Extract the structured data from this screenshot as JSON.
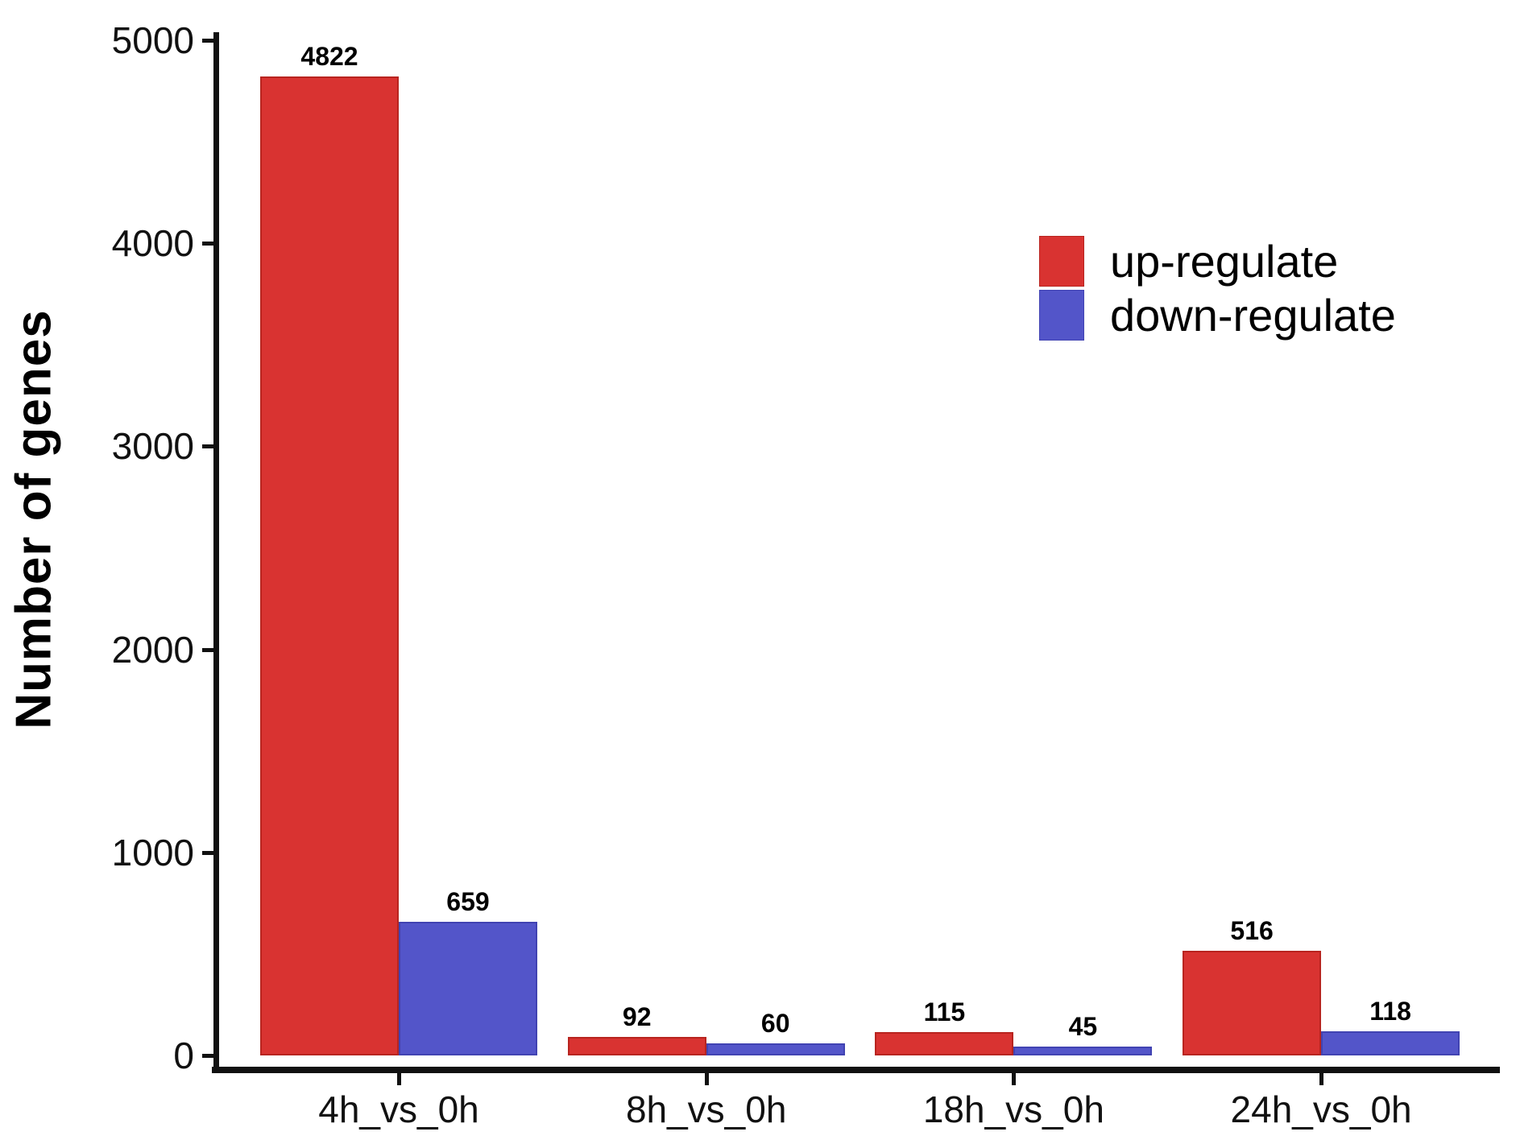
{
  "chart_data": {
    "type": "bar",
    "title": "",
    "xlabel": "",
    "ylabel": "Number of genes",
    "categories": [
      "4h_vs_0h",
      "8h_vs_0h",
      "18h_vs_0h",
      "24h_vs_0h"
    ],
    "series": [
      {
        "name": "up-regulate",
        "color": "#D93331",
        "border_color": "#B8241F",
        "values": [
          4822,
          92,
          115,
          516
        ]
      },
      {
        "name": "down-regulate",
        "color": "#5355C9",
        "border_color": "#4143B2",
        "values": [
          659,
          60,
          45,
          118
        ]
      }
    ],
    "bar_value_labels": [
      [
        "4822",
        "92",
        "115",
        "516"
      ],
      [
        "659",
        "60",
        "45",
        "118"
      ]
    ],
    "ylim": [
      0,
      5000
    ],
    "yticks": [
      "0",
      "1000",
      "2000",
      "3000",
      "4000",
      "5000"
    ],
    "grid": false,
    "legend_position": "upper right inside",
    "legend": [
      "up-regulate",
      "down-regulate"
    ]
  }
}
